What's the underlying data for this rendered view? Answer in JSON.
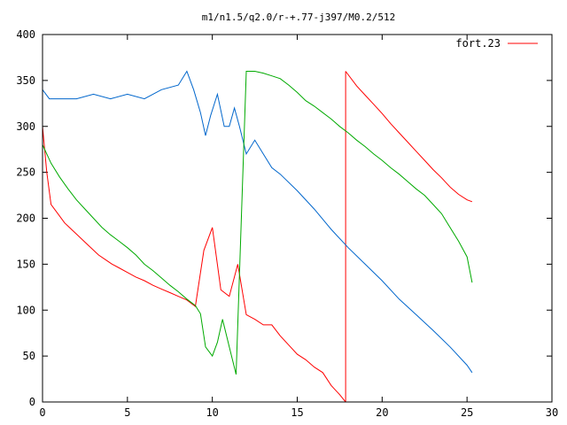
{
  "chart_data": {
    "type": "line",
    "title": "m1/n1.5/q2.0/r-+.77-j397/M0.2/512",
    "xlabel": "",
    "ylabel": "",
    "xlim": [
      0,
      30
    ],
    "ylim": [
      0,
      400
    ],
    "xticks": [
      0,
      5,
      10,
      15,
      20,
      25,
      30
    ],
    "yticks": [
      0,
      50,
      100,
      150,
      200,
      250,
      300,
      350,
      400
    ],
    "grid": false,
    "legend": {
      "position": "top-right",
      "entries": [
        "fort.23"
      ]
    },
    "series": [
      {
        "name": "fort.23",
        "color": "#ff0000",
        "wrap_max": 360,
        "segments": [
          {
            "x": [
              0.0,
              0.25,
              0.5,
              0.9,
              1.3,
              1.7,
              2.1,
              2.5,
              2.9,
              3.3,
              3.7,
              4.1,
              4.5,
              5.0,
              5.5,
              6.0,
              6.5,
              7.0,
              7.5,
              8.0,
              8.5,
              9.0,
              9.5,
              10.0,
              10.5,
              11.0,
              11.5,
              12.0,
              12.5,
              13.0,
              13.5,
              14.0,
              14.5,
              15.0,
              15.5,
              16.0,
              16.5,
              17.0,
              17.5,
              17.85
            ],
            "y": [
              300,
              250,
              215,
              205,
              195,
              188,
              181,
              174,
              167,
              160,
              155,
              150,
              146,
              141,
              136,
              132,
              127,
              123,
              119,
              115,
              111,
              104,
              165,
              190,
              122,
              115,
              150,
              95,
              90,
              84,
              84,
              72,
              62,
              52,
              46,
              38,
              32,
              18,
              8,
              0
            ]
          },
          {
            "x": [
              17.85,
              18.5,
              19.0,
              19.5,
              20.0,
              20.5,
              21.0,
              21.5,
              22.0,
              22.5,
              23.0,
              23.5,
              24.0,
              24.5,
              25.0,
              25.3
            ],
            "y": [
              360,
              344,
              334,
              324,
              314,
              303,
              293,
              283,
              273,
              263,
              253,
              244,
              234,
              226,
              220,
              218
            ]
          }
        ]
      },
      {
        "name": "",
        "color": "#0066cc",
        "wrap_max": 360,
        "segments": [
          {
            "x": [
              0.0,
              0.4,
              1.0,
              2.0,
              3.0,
              4.0,
              5.0,
              6.0,
              7.0,
              8.0,
              8.5,
              8.9,
              9.3,
              9.6,
              9.9,
              10.3,
              10.7,
              11.0,
              11.3,
              11.6,
              12.0,
              12.5,
              13.0,
              13.5,
              14.0,
              15.0,
              16.0,
              17.0,
              18.0,
              19.0,
              20.0,
              21.0,
              22.0,
              23.0,
              24.0,
              25.0,
              25.3
            ],
            "y": [
              340,
              330,
              330,
              330,
              335,
              330,
              335,
              330,
              340,
              345,
              360,
              340,
              315,
              290,
              312,
              335,
              300,
              300,
              320,
              300,
              270,
              285,
              270,
              255,
              248,
              230,
              210,
              188,
              168,
              150,
              132,
              112,
              95,
              78,
              60,
              40,
              32
            ]
          }
        ]
      },
      {
        "name": "",
        "color": "#00aa00",
        "wrap_max": 360,
        "segments": [
          {
            "x": [
              0.0,
              0.5,
              1.0,
              1.5,
              2.0,
              2.5,
              3.0,
              3.5,
              4.0,
              4.5,
              5.0,
              5.5,
              6.0,
              6.5,
              7.0,
              7.5,
              8.0,
              8.5,
              9.0,
              9.3,
              9.6,
              10.0,
              10.3,
              10.6,
              11.0,
              11.4,
              12.0,
              12.5,
              13.0,
              13.5,
              14.0,
              14.5,
              15.0,
              15.5,
              16.0,
              16.5,
              17.0,
              17.5,
              18.0,
              18.5,
              19.0,
              19.5,
              20.0,
              20.5,
              21.0,
              21.5,
              22.0,
              22.5,
              23.0,
              23.5,
              24.0,
              24.5,
              25.0,
              25.3
            ],
            "y": [
              280,
              260,
              245,
              232,
              220,
              210,
              200,
              190,
              182,
              175,
              168,
              160,
              150,
              143,
              135,
              127,
              120,
              112,
              105,
              96,
              60,
              50,
              65,
              90,
              60,
              30,
              360,
              360,
              358,
              355,
              352,
              345,
              337,
              328,
              322,
              315,
              308,
              300,
              293,
              285,
              278,
              270,
              263,
              255,
              248,
              240,
              232,
              225,
              215,
              205,
              190,
              175,
              158,
              130
            ]
          }
        ]
      }
    ]
  }
}
